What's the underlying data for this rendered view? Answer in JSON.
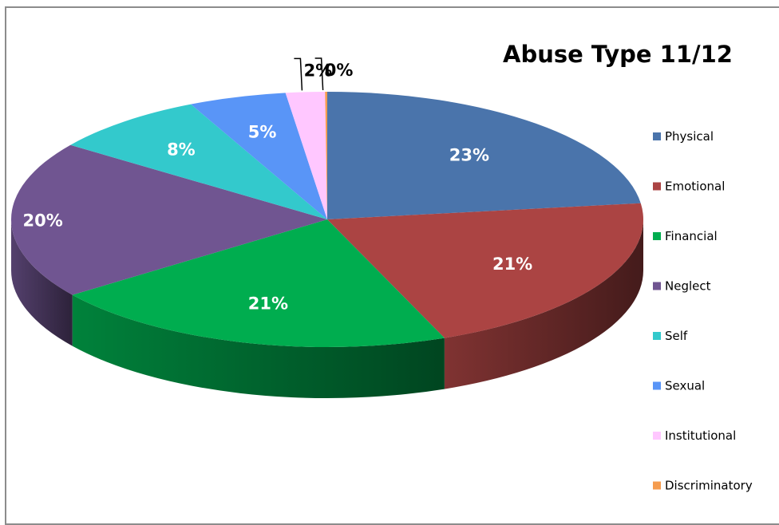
{
  "chart_data": {
    "type": "pie",
    "title": "Abuse Type 11/12",
    "legend_position": "right",
    "slices": [
      {
        "name": "Physical",
        "value": 23,
        "label": "23%",
        "color": "#4a74ab"
      },
      {
        "name": "Emotional",
        "value": 21,
        "label": "21%",
        "color": "#ab4443"
      },
      {
        "name": "Financial",
        "value": 21,
        "label": "21%",
        "color": "#00ad4f"
      },
      {
        "name": "Neglect",
        "value": 20,
        "label": "20%",
        "color": "#705591"
      },
      {
        "name": "Self",
        "value": 8,
        "label": "8%",
        "color": "#33c9cc"
      },
      {
        "name": "Sexual",
        "value": 5,
        "label": "5%",
        "color": "#5995f7"
      },
      {
        "name": "Institutional",
        "value": 2,
        "label": "2%",
        "color": "#ffc7ff"
      },
      {
        "name": "Discriminatory",
        "value": 0,
        "label": "0%",
        "color": "#f59c4f"
      }
    ]
  }
}
